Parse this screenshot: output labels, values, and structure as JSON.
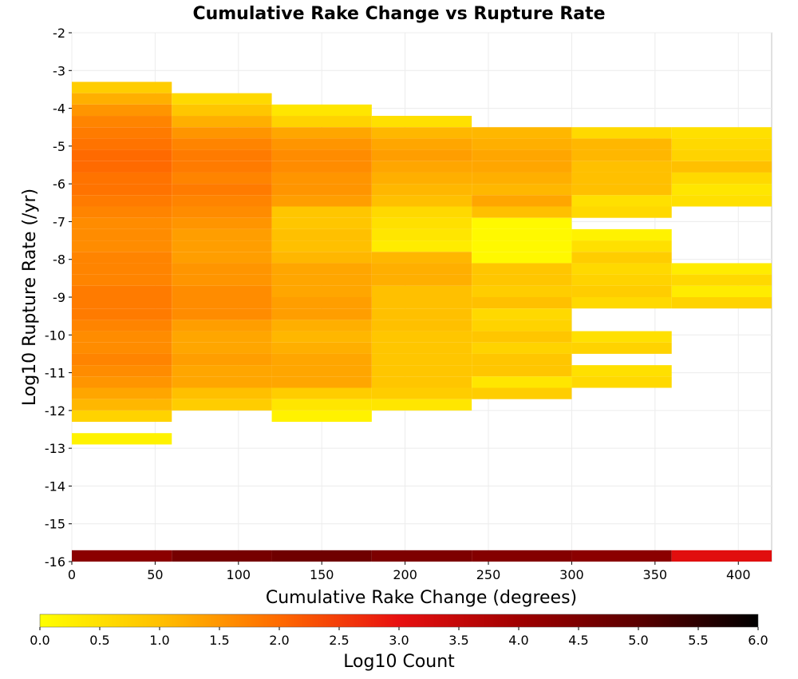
{
  "chart_data": {
    "type": "heatmap",
    "title": "Cumulative Rake Change vs Rupture Rate",
    "xlabel": "Cumulative Rake Change (degrees)",
    "ylabel": "Log10 Rupture Rate (/yr)",
    "xlim": [
      0,
      420
    ],
    "ylim": [
      -16,
      -2
    ],
    "x_ticks": [
      0,
      50,
      100,
      150,
      200,
      250,
      300,
      350,
      400
    ],
    "y_ticks": [
      -2,
      -3,
      -4,
      -5,
      -6,
      -7,
      -8,
      -9,
      -10,
      -11,
      -12,
      -13,
      -14,
      -15,
      -16
    ],
    "x_bin_width": 60,
    "y_bin_height": 0.3,
    "grid": true,
    "colorbar": {
      "label": "Log10 Count",
      "min": 0.0,
      "max": 6.0,
      "ticks": [
        "0.0",
        "0.5",
        "1.0",
        "1.5",
        "2.0",
        "2.5",
        "3.0",
        "3.5",
        "4.0",
        "4.5",
        "5.0",
        "5.5",
        "6.0"
      ],
      "stops": [
        {
          "value": 0.0,
          "color": "#ffff00"
        },
        {
          "value": 1.0,
          "color": "#ffc000"
        },
        {
          "value": 2.0,
          "color": "#ff6a00"
        },
        {
          "value": 3.0,
          "color": "#e81010"
        },
        {
          "value": 4.0,
          "color": "#a00000"
        },
        {
          "value": 5.0,
          "color": "#5a0000"
        },
        {
          "value": 6.0,
          "color": "#000000"
        }
      ]
    },
    "columns": [
      {
        "x_start": 0,
        "bottom_row": {
          "y": -16.0,
          "value": 4.3
        },
        "cells": [
          [
            -3.3,
            0.8
          ],
          [
            -3.6,
            1.2
          ],
          [
            -3.9,
            1.5
          ],
          [
            -4.2,
            1.7
          ],
          [
            -4.5,
            1.8
          ],
          [
            -4.8,
            1.9
          ],
          [
            -5.1,
            2.0
          ],
          [
            -5.4,
            2.0
          ],
          [
            -5.7,
            1.9
          ],
          [
            -6.0,
            1.9
          ],
          [
            -6.3,
            1.8
          ],
          [
            -6.6,
            1.7
          ],
          [
            -6.9,
            1.6
          ],
          [
            -7.2,
            1.6
          ],
          [
            -7.5,
            1.6
          ],
          [
            -7.8,
            1.7
          ],
          [
            -8.1,
            1.7
          ],
          [
            -8.4,
            1.7
          ],
          [
            -8.7,
            1.8
          ],
          [
            -9.0,
            1.8
          ],
          [
            -9.3,
            1.8
          ],
          [
            -9.6,
            1.7
          ],
          [
            -9.9,
            1.6
          ],
          [
            -10.2,
            1.6
          ],
          [
            -10.5,
            1.7
          ],
          [
            -10.8,
            1.6
          ],
          [
            -11.1,
            1.5
          ],
          [
            -11.4,
            1.3
          ],
          [
            -11.7,
            1.1
          ],
          [
            -12.0,
            0.7
          ],
          [
            -12.6,
            0.2
          ]
        ]
      },
      {
        "x_start": 60,
        "bottom_row": {
          "y": -16.0,
          "value": 4.6
        },
        "cells": [
          [
            -3.6,
            0.6
          ],
          [
            -3.9,
            0.9
          ],
          [
            -4.2,
            1.2
          ],
          [
            -4.5,
            1.5
          ],
          [
            -4.8,
            1.7
          ],
          [
            -5.1,
            1.8
          ],
          [
            -5.4,
            1.8
          ],
          [
            -5.7,
            1.7
          ],
          [
            -6.0,
            1.8
          ],
          [
            -6.3,
            1.7
          ],
          [
            -6.6,
            1.6
          ],
          [
            -6.9,
            1.5
          ],
          [
            -7.2,
            1.4
          ],
          [
            -7.5,
            1.4
          ],
          [
            -7.8,
            1.4
          ],
          [
            -8.1,
            1.5
          ],
          [
            -8.4,
            1.5
          ],
          [
            -8.7,
            1.6
          ],
          [
            -9.0,
            1.6
          ],
          [
            -9.3,
            1.6
          ],
          [
            -9.6,
            1.4
          ],
          [
            -9.9,
            1.3
          ],
          [
            -10.2,
            1.3
          ],
          [
            -10.5,
            1.4
          ],
          [
            -10.8,
            1.3
          ],
          [
            -11.1,
            1.3
          ],
          [
            -11.4,
            1.0
          ],
          [
            -11.7,
            0.8
          ]
        ]
      },
      {
        "x_start": 120,
        "bottom_row": {
          "y": -16.0,
          "value": 4.7
        },
        "cells": [
          [
            -3.9,
            0.4
          ],
          [
            -4.2,
            0.7
          ],
          [
            -4.5,
            1.3
          ],
          [
            -4.8,
            1.5
          ],
          [
            -5.1,
            1.6
          ],
          [
            -5.4,
            1.6
          ],
          [
            -5.7,
            1.5
          ],
          [
            -6.0,
            1.5
          ],
          [
            -6.3,
            1.4
          ],
          [
            -6.6,
            0.9
          ],
          [
            -6.9,
            0.9
          ],
          [
            -7.2,
            1.0
          ],
          [
            -7.5,
            1.0
          ],
          [
            -7.8,
            1.1
          ],
          [
            -8.1,
            1.3
          ],
          [
            -8.4,
            1.3
          ],
          [
            -8.7,
            1.3
          ],
          [
            -9.0,
            1.4
          ],
          [
            -9.3,
            1.4
          ],
          [
            -9.6,
            1.2
          ],
          [
            -9.9,
            1.1
          ],
          [
            -10.2,
            1.2
          ],
          [
            -10.5,
            1.3
          ],
          [
            -10.8,
            1.3
          ],
          [
            -11.1,
            1.3
          ],
          [
            -11.4,
            0.8
          ],
          [
            -11.7,
            0.4
          ],
          [
            -12.0,
            0.2
          ]
        ]
      },
      {
        "x_start": 180,
        "bottom_row": {
          "y": -16.0,
          "value": 4.5
        },
        "cells": [
          [
            -4.2,
            0.5
          ],
          [
            -4.5,
            1.1
          ],
          [
            -4.8,
            1.3
          ],
          [
            -5.1,
            1.4
          ],
          [
            -5.4,
            1.3
          ],
          [
            -5.7,
            1.2
          ],
          [
            -6.0,
            1.1
          ],
          [
            -6.3,
            1.0
          ],
          [
            -6.6,
            0.6
          ],
          [
            -6.9,
            0.5
          ],
          [
            -7.2,
            0.4
          ],
          [
            -7.5,
            0.3
          ],
          [
            -7.8,
            1.1
          ],
          [
            -8.1,
            1.2
          ],
          [
            -8.4,
            1.2
          ],
          [
            -8.7,
            1.0
          ],
          [
            -9.0,
            1.0
          ],
          [
            -9.3,
            1.0
          ],
          [
            -9.6,
            1.0
          ],
          [
            -9.9,
            0.9
          ],
          [
            -10.2,
            0.9
          ],
          [
            -10.5,
            0.9
          ],
          [
            -10.8,
            0.9
          ],
          [
            -11.1,
            0.9
          ],
          [
            -11.4,
            0.8
          ],
          [
            -11.7,
            0.4
          ]
        ]
      },
      {
        "x_start": 240,
        "bottom_row": {
          "y": -16.0,
          "value": 4.4
        },
        "cells": [
          [
            -4.5,
            1.1
          ],
          [
            -4.8,
            1.2
          ],
          [
            -5.1,
            1.3
          ],
          [
            -5.4,
            1.3
          ],
          [
            -5.7,
            1.2
          ],
          [
            -6.0,
            1.1
          ],
          [
            -6.3,
            1.3
          ],
          [
            -6.6,
            1.0
          ],
          [
            -6.9,
            0.1
          ],
          [
            -7.2,
            0.1
          ],
          [
            -7.5,
            0.1
          ],
          [
            -7.8,
            0.1
          ],
          [
            -8.1,
            0.9
          ],
          [
            -8.4,
            0.9
          ],
          [
            -8.7,
            0.8
          ],
          [
            -9.0,
            1.0
          ],
          [
            -9.3,
            0.6
          ],
          [
            -9.6,
            0.7
          ],
          [
            -9.9,
            0.9
          ],
          [
            -10.2,
            0.7
          ],
          [
            -10.5,
            0.9
          ],
          [
            -10.8,
            0.9
          ],
          [
            -11.1,
            0.4
          ],
          [
            -11.4,
            0.8
          ]
        ]
      },
      {
        "x_start": 300,
        "bottom_row": {
          "y": -16.0,
          "value": 4.3
        },
        "cells": [
          [
            -4.5,
            0.6
          ],
          [
            -4.8,
            1.1
          ],
          [
            -5.1,
            1.1
          ],
          [
            -5.4,
            1.0
          ],
          [
            -5.7,
            1.0
          ],
          [
            -6.0,
            1.0
          ],
          [
            -6.3,
            0.5
          ],
          [
            -6.6,
            0.6
          ],
          [
            -7.2,
            0.2
          ],
          [
            -7.5,
            0.5
          ],
          [
            -7.8,
            0.8
          ],
          [
            -8.1,
            0.6
          ],
          [
            -8.4,
            0.7
          ],
          [
            -8.7,
            0.8
          ],
          [
            -9.0,
            0.6
          ],
          [
            -9.9,
            0.5
          ],
          [
            -10.2,
            0.7
          ],
          [
            -10.8,
            0.5
          ],
          [
            -11.1,
            0.6
          ]
        ]
      },
      {
        "x_start": 360,
        "bottom_row": {
          "y": -16.0,
          "value": 3.1
        },
        "cells": [
          [
            -4.5,
            0.5
          ],
          [
            -4.8,
            0.6
          ],
          [
            -5.1,
            0.7
          ],
          [
            -5.4,
            1.0
          ],
          [
            -5.7,
            0.6
          ],
          [
            -6.0,
            0.4
          ],
          [
            -6.3,
            0.5
          ],
          [
            -8.1,
            0.3
          ],
          [
            -8.4,
            0.6
          ],
          [
            -8.7,
            0.3
          ],
          [
            -9.0,
            0.7
          ]
        ]
      }
    ]
  }
}
